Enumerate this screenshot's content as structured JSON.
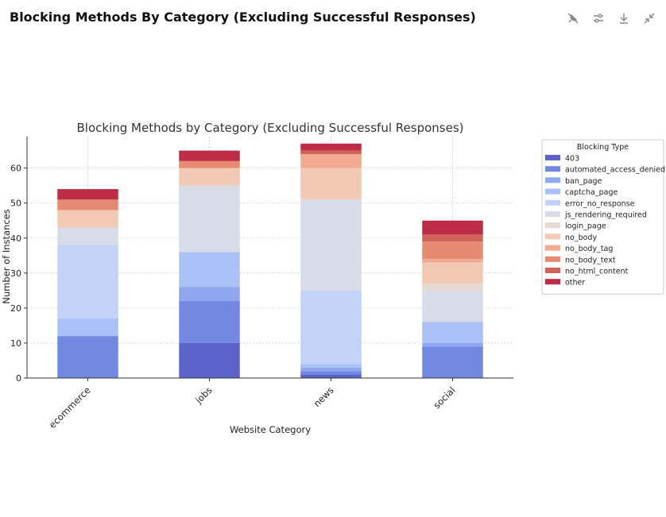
{
  "page": {
    "title": "Blocking Methods By Category (Excluding Successful Responses)"
  },
  "toolbar": {
    "icons": [
      "pin-icon",
      "adjust-icon",
      "download-icon",
      "collapse-icon"
    ]
  },
  "chart_data": {
    "type": "bar",
    "stacked": true,
    "title": "Blocking Methods by Category (Excluding Successful Responses)",
    "xlabel": "Website Category",
    "ylabel": "Number of Instances",
    "ylim": [
      0,
      69
    ],
    "yticks": [
      0,
      10,
      20,
      30,
      40,
      50,
      60
    ],
    "grid": true,
    "legend_title": "Blocking Type",
    "legend_position": "outside-right",
    "categories": [
      "ecommerce",
      "jobs",
      "news",
      "social"
    ],
    "series": [
      {
        "name": "403",
        "color": "#5b64c9",
        "values": [
          0,
          10,
          1,
          0
        ]
      },
      {
        "name": "automated_access_denied",
        "color": "#7288e1",
        "values": [
          12,
          12,
          1,
          9
        ]
      },
      {
        "name": "ban_page",
        "color": "#8ea7ef",
        "values": [
          0,
          4,
          1,
          1
        ]
      },
      {
        "name": "captcha_page",
        "color": "#a9c1f7",
        "values": [
          5,
          10,
          1,
          6
        ]
      },
      {
        "name": "error_no_response",
        "color": "#c2d3f7",
        "values": [
          21,
          0,
          21,
          0
        ]
      },
      {
        "name": "js_rendering_required",
        "color": "#d7dce8",
        "values": [
          5,
          19,
          26,
          9
        ]
      },
      {
        "name": "login_page",
        "color": "#e6d9cf",
        "values": [
          0,
          0,
          0,
          2
        ]
      },
      {
        "name": "no_body",
        "color": "#f3c9b4",
        "values": [
          5,
          5,
          9,
          6
        ]
      },
      {
        "name": "no_body_tag",
        "color": "#f2ab90",
        "values": [
          0,
          0,
          4,
          1
        ]
      },
      {
        "name": "no_body_text",
        "color": "#e68a72",
        "values": [
          3,
          2,
          0,
          5
        ]
      },
      {
        "name": "no_html_content",
        "color": "#d06458",
        "values": [
          0,
          0,
          1,
          2
        ]
      },
      {
        "name": "other",
        "color": "#bf2c45",
        "values": [
          3,
          3,
          2,
          4
        ]
      }
    ]
  }
}
